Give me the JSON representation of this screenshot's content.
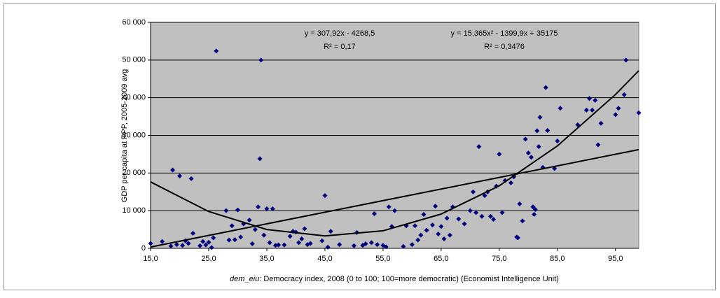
{
  "chart_data": {
    "type": "scatter",
    "y_label": "GDP per capita at PPP, 2005-2009 avg",
    "x_label_var": "dem_eiu",
    "x_label": ": Democracy index, 2008 (0 to 100; 100=more democratic) (Economist Intelligence Unit)",
    "xlim": [
      15,
      99
    ],
    "ylim": [
      0,
      60000
    ],
    "xticks": [
      {
        "value": 15,
        "label": "15,0"
      },
      {
        "value": 25,
        "label": "25,0"
      },
      {
        "value": 35,
        "label": "35,0"
      },
      {
        "value": 45,
        "label": "45,0"
      },
      {
        "value": 55,
        "label": "55,0"
      },
      {
        "value": 65,
        "label": "65,0"
      },
      {
        "value": 75,
        "label": "75,0"
      },
      {
        "value": 85,
        "label": "85,0"
      },
      {
        "value": 95,
        "label": "95,0"
      }
    ],
    "yticks": [
      0,
      {
        "value": 10000,
        "label": "10 000"
      },
      {
        "value": 20000,
        "label": "20 000"
      },
      {
        "value": 30000,
        "label": "30 000"
      },
      {
        "value": 40000,
        "label": "40 000"
      },
      {
        "value": 50000,
        "label": "50 000"
      },
      {
        "value": 60000,
        "label": "60 000"
      }
    ],
    "grid": true,
    "color": "#000080",
    "background": "#c0c0c0",
    "x": [
      15,
      17,
      18.5,
      18.8,
      19.5,
      20,
      20.5,
      21,
      21.5,
      22,
      22.3,
      23.5,
      24,
      24.5,
      25,
      25.5,
      25.8,
      26.3,
      28,
      28.5,
      29,
      29.5,
      30,
      30.5,
      31,
      32,
      32.5,
      33,
      33.5,
      33.8,
      34,
      34.5,
      35,
      35.5,
      36,
      36.5,
      37,
      38,
      39,
      39.5,
      40,
      40.5,
      41,
      41.5,
      42,
      42.5,
      44.5,
      45,
      45.5,
      46,
      47.5,
      50,
      50.5,
      51.5,
      52,
      53,
      53.5,
      54,
      55,
      55.5,
      56,
      56.5,
      57,
      58.5,
      59,
      60,
      60.5,
      61,
      61.5,
      62,
      62.5,
      63.5,
      64,
      64.5,
      65,
      65.5,
      66,
      66.5,
      67,
      68,
      69,
      70,
      70.5,
      71,
      71.5,
      72,
      72.5,
      73,
      73.5,
      74,
      74.5,
      75,
      75.5,
      76,
      77,
      77.5,
      78,
      78.2,
      78.5,
      79,
      79.5,
      80,
      80.5,
      80.8,
      81,
      81.2,
      81.5,
      81.8,
      82,
      82.5,
      83,
      83.3,
      84.5,
      85,
      85.5,
      88.5,
      90,
      90.5,
      91,
      91.5,
      92,
      92.5,
      95,
      95.5,
      96.5,
      96.8,
      99
    ],
    "values": [
      1300,
      1800,
      600,
      20800,
      1000,
      19200,
      800,
      2000,
      1300,
      18500,
      4000,
      700,
      1800,
      900,
      1600,
      200,
      2800,
      52400,
      10000,
      2200,
      6000,
      2300,
      10200,
      3000,
      6500,
      7500,
      1200,
      5000,
      11000,
      23800,
      50000,
      3500,
      10500,
      1500,
      10500,
      800,
      900,
      900,
      3200,
      4500,
      4300,
      1500,
      2500,
      5200,
      1000,
      1300,
      2000,
      14000,
      300,
      4500,
      1000,
      700,
      4200,
      800,
      1200,
      1500,
      9200,
      1000,
      800,
      400,
      11000,
      5800,
      10000,
      500,
      6000,
      1000,
      6000,
      2200,
      3500,
      9000,
      4800,
      6200,
      11200,
      3800,
      5800,
      2500,
      8000,
      3500,
      11000,
      7800,
      6500,
      10000,
      15000,
      9500,
      27000,
      8500,
      14000,
      15000,
      8500,
      7700,
      16500,
      25000,
      9500,
      18000,
      17400,
      19000,
      3000,
      2800,
      11800,
      7300,
      29000,
      25300,
      24200,
      11000,
      9000,
      10300,
      31200,
      27000,
      34800,
      21500,
      42700,
      31300,
      21200,
      28500,
      37200,
      32800,
      36700,
      39800,
      36700,
      39300,
      27500,
      33200,
      35500,
      37200,
      40800,
      50000,
      36000
    ],
    "trendlines": [
      {
        "equation": "y = 307,92x - 4268,5",
        "r2": "R² = 0,17",
        "x": [
          15,
          99
        ],
        "values": [
          350,
          26216
        ]
      },
      {
        "equation": "y = 15,365x² - 1399,9x + 35175",
        "r2": "R² = 0,3476",
        "x": [
          15,
          25,
          35,
          45,
          55,
          65,
          75,
          85,
          95,
          99
        ],
        "values": [
          17633,
          9780,
          5000,
          3293,
          4659,
          9098,
          16610,
          27195,
          40853,
          47177
        ]
      }
    ]
  }
}
